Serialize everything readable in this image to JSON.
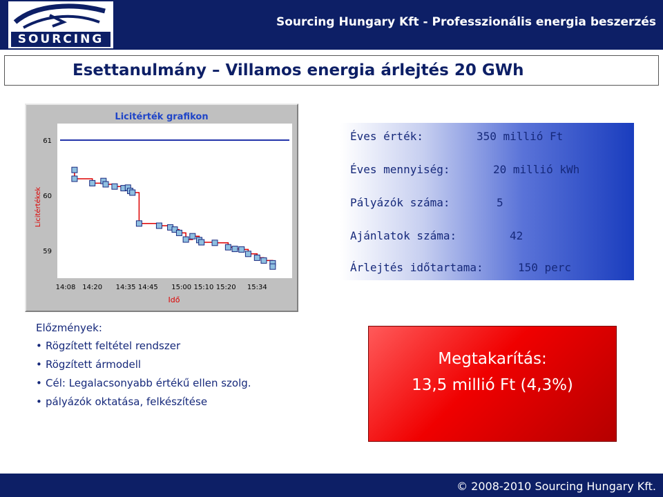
{
  "header": {
    "logo_text": "SOURCING",
    "company_tagline": "Sourcing Hungary Kft - Professzionális energia beszerzés"
  },
  "headline": "Esettanulmány – Villamos energia árlejtés 20 GWh",
  "stats": [
    {
      "label": "Éves érték:",
      "value": "350 millió Ft"
    },
    {
      "label": "Éves mennyiség:",
      "value": "20 millió kWh"
    },
    {
      "label": "Pályázók száma:",
      "value": "5"
    },
    {
      "label": "Ajánlatok száma:",
      "value": "42"
    },
    {
      "label": "Árlejtés időtartama:",
      "value": "150 perc"
    }
  ],
  "history": {
    "title": "Előzmények:",
    "items": [
      "Rögzített feltétel rendszer",
      "Rögzített ármodell",
      "Cél: Legalacsonyabb értékű ellen szolg.",
      "pályázók oktatása, felkészítése"
    ]
  },
  "savings": {
    "title": "Megtakarítás:",
    "amount": "13,5 millió Ft (4,3%)"
  },
  "footer": {
    "copyright": "© 2008-2010 Sourcing Hungary Kft."
  },
  "chart_data": {
    "type": "line",
    "title": "Licitérték grafikon",
    "xlabel": "Idő",
    "ylabel": "Licitértékek",
    "x_ticks": [
      "14:08",
      "14:20",
      "14:35",
      "14:45",
      "15:00",
      "15:10",
      "15:20",
      "15:34"
    ],
    "y_ticks": [
      59,
      60,
      61
    ],
    "ylim": [
      58.5,
      61.3
    ],
    "xlim_minutes": [
      0,
      98
    ],
    "reference_line": 61,
    "grid": false,
    "colors": {
      "line": "#dd0000",
      "marker": "#8fbfe0",
      "reference": "#2233aa"
    },
    "series": [
      {
        "values": [
          [
            4,
            60.46
          ],
          [
            4,
            60.3
          ],
          [
            12,
            60.22
          ],
          [
            17,
            60.26
          ],
          [
            18,
            60.2
          ],
          [
            22,
            60.16
          ],
          [
            26,
            60.13
          ],
          [
            28,
            60.14
          ],
          [
            29,
            60.08
          ],
          [
            30,
            60.05
          ],
          [
            33,
            59.49
          ],
          [
            42,
            59.45
          ],
          [
            47,
            59.42
          ],
          [
            49,
            59.38
          ],
          [
            51,
            59.32
          ],
          [
            54,
            59.2
          ],
          [
            57,
            59.26
          ],
          [
            60,
            59.19
          ],
          [
            61,
            59.15
          ],
          [
            67,
            59.14
          ],
          [
            73,
            59.06
          ],
          [
            76,
            59.03
          ],
          [
            79,
            59.02
          ],
          [
            82,
            58.94
          ],
          [
            86,
            58.87
          ],
          [
            89,
            58.82
          ],
          [
            93,
            58.77
          ],
          [
            93,
            58.71
          ]
        ]
      }
    ]
  }
}
